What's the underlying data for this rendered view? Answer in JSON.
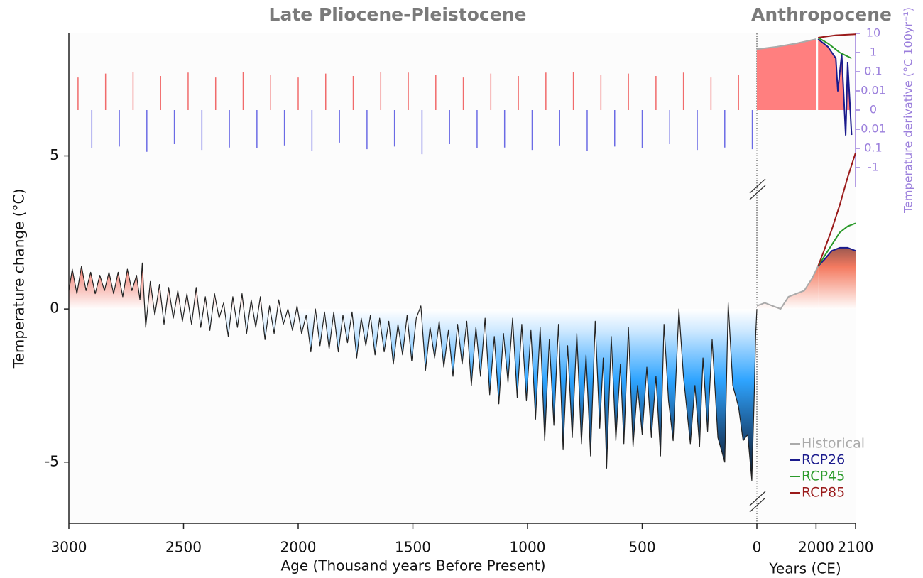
{
  "chart_data": [
    {
      "type": "line",
      "title": "Late Pliocene-Pleistocene",
      "xlabel": "Age (Thousand years Before Present)",
      "ylabel": "Temperature change (°C)",
      "xlim": [
        3000,
        0
      ],
      "xticks": [
        3000,
        2500,
        2000,
        1500,
        1000,
        500,
        0
      ],
      "ylim": [
        -7,
        9
      ],
      "yticks": [
        -5,
        0,
        5
      ],
      "y2lim": [
        -10,
        10
      ],
      "y2scale": "symlog",
      "series": [
        {
          "color": "#222222",
          "x": [
            3000,
            2985,
            2965,
            2945,
            2925,
            2905,
            2885,
            2865,
            2845,
            2825,
            2805,
            2785,
            2765,
            2745,
            2725,
            2705,
            2690,
            2680,
            2665,
            2645,
            2625,
            2605,
            2585,
            2565,
            2545,
            2525,
            2505,
            2485,
            2465,
            2445,
            2425,
            2405,
            2385,
            2365,
            2345,
            2325,
            2305,
            2285,
            2265,
            2245,
            2225,
            2205,
            2185,
            2165,
            2145,
            2125,
            2105,
            2085,
            2065,
            2045,
            2025,
            2005,
            1985,
            1965,
            1945,
            1925,
            1905,
            1885,
            1865,
            1845,
            1825,
            1805,
            1785,
            1765,
            1745,
            1725,
            1705,
            1685,
            1665,
            1645,
            1625,
            1605,
            1585,
            1565,
            1545,
            1525,
            1505,
            1485,
            1465,
            1445,
            1425,
            1405,
            1385,
            1365,
            1345,
            1325,
            1305,
            1285,
            1265,
            1245,
            1225,
            1205,
            1185,
            1165,
            1145,
            1125,
            1105,
            1085,
            1065,
            1045,
            1025,
            1005,
            985,
            965,
            945,
            925,
            905,
            885,
            865,
            845,
            825,
            805,
            785,
            765,
            745,
            725,
            705,
            685,
            670,
            655,
            635,
            615,
            595,
            580,
            560,
            540,
            520,
            500,
            480,
            460,
            440,
            420,
            405,
            385,
            365,
            340,
            320,
            290,
            270,
            250,
            235,
            215,
            195,
            170,
            140,
            125,
            105,
            80,
            60,
            40,
            22,
            12,
            5,
            0
          ],
          "values": [
            0.6,
            1.3,
            0.5,
            1.4,
            0.6,
            1.2,
            0.5,
            1.1,
            0.6,
            1.2,
            0.5,
            1.2,
            0.4,
            1.3,
            0.6,
            1.1,
            0.3,
            1.5,
            -0.6,
            0.9,
            -0.2,
            0.8,
            -0.5,
            0.7,
            -0.3,
            0.6,
            -0.4,
            0.5,
            -0.5,
            0.7,
            -0.6,
            0.4,
            -0.7,
            0.5,
            -0.3,
            0.2,
            -0.9,
            0.4,
            -0.6,
            0.5,
            -0.8,
            0.3,
            -0.6,
            0.4,
            -1.0,
            0.1,
            -0.8,
            0.3,
            -0.5,
            0.0,
            -0.7,
            0.1,
            -0.8,
            -0.2,
            -1.4,
            0.0,
            -1.2,
            -0.1,
            -1.3,
            -0.1,
            -1.4,
            -0.2,
            -1.1,
            -0.1,
            -1.6,
            -0.3,
            -1.2,
            -0.2,
            -1.5,
            -0.3,
            -1.4,
            -0.4,
            -1.8,
            -0.5,
            -1.5,
            -0.2,
            -1.7,
            -0.3,
            0.1,
            -2.0,
            -0.6,
            -1.6,
            -0.4,
            -1.9,
            -0.7,
            -2.2,
            -0.5,
            -1.8,
            -0.4,
            -2.5,
            -0.6,
            -2.2,
            -0.3,
            -2.8,
            -0.9,
            -3.1,
            -0.8,
            -2.4,
            -0.3,
            -2.9,
            -0.5,
            -3.0,
            -0.7,
            -3.6,
            -0.6,
            -4.3,
            -1.0,
            -3.8,
            -0.5,
            -4.6,
            -1.2,
            -4.2,
            -0.8,
            -4.4,
            -1.5,
            -4.8,
            -0.4,
            -3.9,
            -1.6,
            -5.2,
            -0.9,
            -4.3,
            -1.8,
            -4.4,
            -0.6,
            -4.5,
            -2.5,
            -4.1,
            -1.9,
            -4.2,
            -2.2,
            -4.8,
            -0.5,
            -3.0,
            -4.3,
            0.0,
            -2.2,
            -4.4,
            -2.5,
            -4.5,
            -1.6,
            -4.0,
            -1.0,
            -4.2,
            -5.0,
            0.2,
            -2.5,
            -3.2,
            -4.3,
            -4.1,
            -5.6,
            -3.0,
            -0.8,
            0.0
          ]
        },
        {
          "type": "bar",
          "axis": "y2",
          "color": "#ee3b3b",
          "x": [
            2960,
            2840,
            2720,
            2600,
            2480,
            2360,
            2240,
            2120,
            2000,
            1880,
            1760,
            1640,
            1520,
            1400,
            1280,
            1160,
            1040,
            920,
            800,
            680,
            560,
            440,
            320,
            200,
            80
          ],
          "values": [
            0.05,
            0.08,
            0.1,
            0.06,
            0.09,
            0.05,
            0.1,
            0.07,
            0.05,
            0.08,
            0.06,
            0.1,
            0.09,
            0.07,
            0.05,
            0.08,
            0.06,
            0.09,
            0.1,
            0.07,
            0.08,
            0.06,
            0.09,
            0.05,
            0.07
          ]
        },
        {
          "type": "bar",
          "axis": "y2",
          "color": "#3b3bdd",
          "x": [
            2900,
            2780,
            2660,
            2540,
            2420,
            2300,
            2180,
            2060,
            1940,
            1820,
            1700,
            1580,
            1460,
            1340,
            1220,
            1100,
            980,
            860,
            740,
            620,
            500,
            380,
            260,
            140,
            20
          ],
          "values": [
            -0.1,
            -0.08,
            -0.15,
            -0.06,
            -0.12,
            -0.09,
            -0.1,
            -0.07,
            -0.13,
            -0.05,
            -0.11,
            -0.08,
            -0.2,
            -0.06,
            -0.1,
            -0.09,
            -0.12,
            -0.07,
            -0.14,
            -0.08,
            -0.1,
            -0.06,
            -0.12,
            -0.09,
            -0.11
          ]
        }
      ]
    },
    {
      "type": "line",
      "title": "Anthropocene",
      "xlabel": "Years (CE)",
      "y2label": "Temperature derivative (°C 100yr⁻¹)",
      "xlim": [
        1850,
        2100
      ],
      "xticks": [
        2000,
        2100
      ],
      "ylim": [
        -7,
        9
      ],
      "y2lim": [
        -10,
        10
      ],
      "y2scale": "symlog",
      "y2ticks": [
        10,
        1,
        0.1,
        0.01,
        0,
        {
          "value": -0.01,
          "label": "0.01"
        },
        {
          "value": -0.1,
          "label": "0.1"
        },
        -1
      ],
      "y2color": "#9b7fdc",
      "legend": "lower right",
      "series": [
        {
          "name": "Historical",
          "color": "#aaaaaa",
          "x": [
            1850,
            1870,
            1890,
            1910,
            1930,
            1950,
            1970,
            1990,
            2005
          ],
          "values": [
            0.1,
            0.2,
            0.1,
            0.0,
            0.4,
            0.5,
            0.6,
            1.0,
            1.4
          ]
        },
        {
          "name": "RCP26",
          "color": "#1a1a8c",
          "x": [
            2005,
            2020,
            2040,
            2060,
            2080,
            2100
          ],
          "values": [
            1.4,
            1.6,
            1.9,
            2.0,
            2.0,
            1.9
          ]
        },
        {
          "name": "RCP45",
          "color": "#2a9a2a",
          "x": [
            2005,
            2020,
            2040,
            2060,
            2080,
            2100
          ],
          "values": [
            1.4,
            1.7,
            2.1,
            2.5,
            2.7,
            2.8
          ]
        },
        {
          "name": "RCP85",
          "color": "#9a1a1a",
          "x": [
            2005,
            2020,
            2040,
            2060,
            2080,
            2100
          ],
          "values": [
            1.4,
            1.9,
            2.6,
            3.4,
            4.3,
            5.1
          ]
        },
        {
          "axis": "y2",
          "color": "#aaaaaa",
          "x": [
            1850,
            1900,
            1950,
            2000
          ],
          "values": [
            1.5,
            2,
            3,
            5
          ]
        },
        {
          "axis": "y2",
          "color": "#1a1a8c",
          "x": [
            2005,
            2030,
            2050,
            2055,
            2065,
            2075,
            2080,
            2090
          ],
          "values": [
            5,
            2,
            0.5,
            0.01,
            0.8,
            -0.02,
            0.3,
            -0.02
          ]
        },
        {
          "axis": "y2",
          "color": "#2a9a2a",
          "x": [
            2005,
            2030,
            2060,
            2090
          ],
          "values": [
            6,
            3,
            1,
            0.5
          ]
        },
        {
          "axis": "y2",
          "color": "#9a1a1a",
          "x": [
            2005,
            2050,
            2100
          ],
          "values": [
            6,
            8,
            9
          ]
        }
      ]
    }
  ]
}
